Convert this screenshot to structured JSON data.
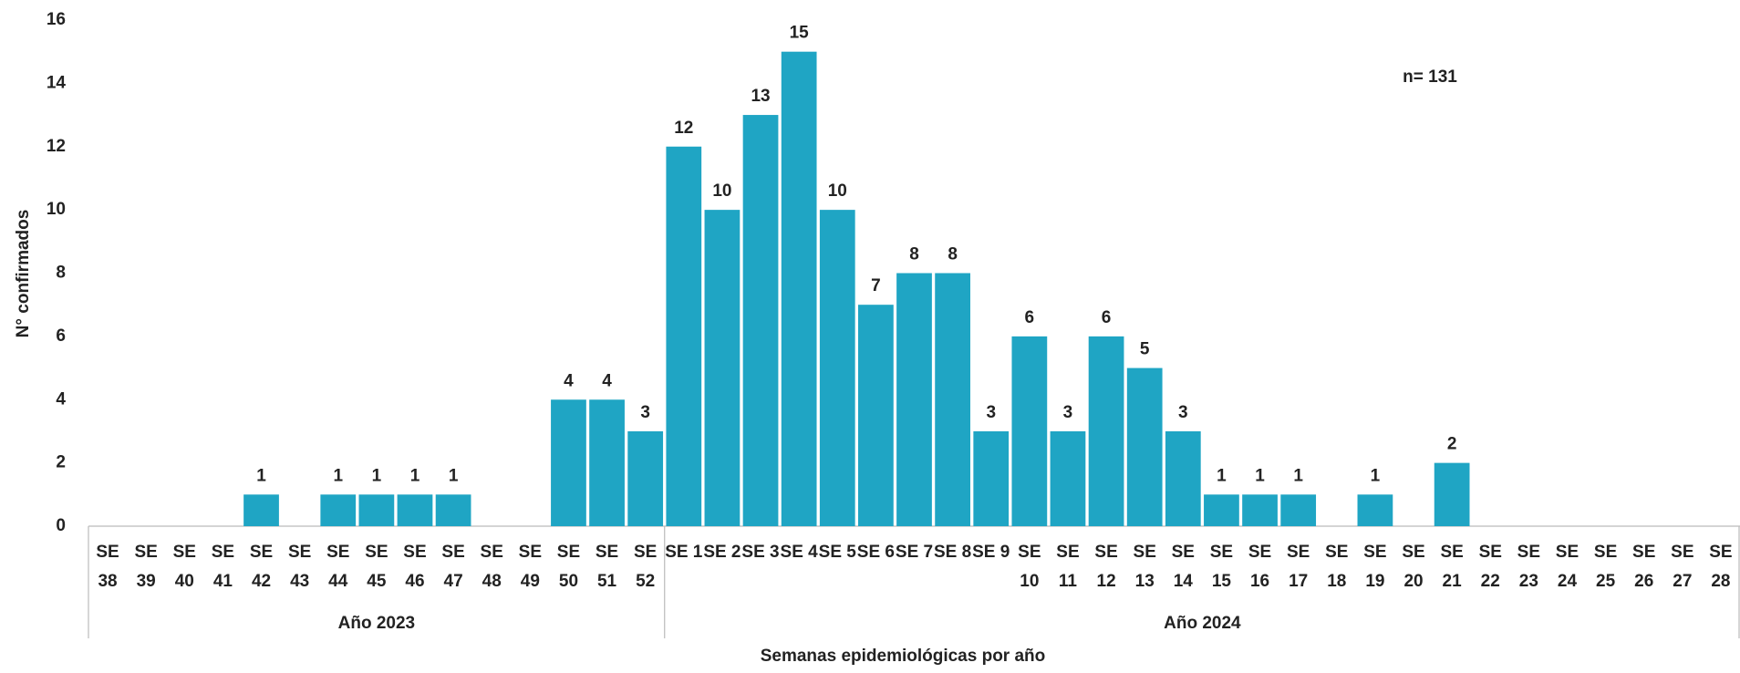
{
  "chart_data": {
    "type": "bar",
    "annotation": "n= 131",
    "x_label": "Semanas epidemiológicas por año",
    "y_label": "N° confirmados",
    "color": "#1fa5c4",
    "ylim": [
      0,
      16
    ],
    "yticks": [
      0,
      2,
      4,
      6,
      8,
      10,
      12,
      14,
      16
    ],
    "grid": false,
    "groups": [
      {
        "label": "Año 2023",
        "categories": [
          "SE 38",
          "SE 39",
          "SE 40",
          "SE 41",
          "SE 42",
          "SE 43",
          "SE 44",
          "SE 45",
          "SE 46",
          "SE 47",
          "SE 48",
          "SE 49",
          "SE 50",
          "SE 51",
          "SE 52"
        ],
        "values": [
          0,
          0,
          0,
          0,
          1,
          0,
          1,
          1,
          1,
          1,
          0,
          0,
          4,
          4,
          3
        ]
      },
      {
        "label": "Año 2024",
        "categories": [
          "SE 1",
          "SE 2",
          "SE 3",
          "SE 4",
          "SE 5",
          "SE 6",
          "SE 7",
          "SE 8",
          "SE 9",
          "SE 10",
          "SE 11",
          "SE 12",
          "SE 13",
          "SE 14",
          "SE 15",
          "SE 16",
          "SE 17",
          "SE 18",
          "SE 19",
          "SE 20",
          "SE 21",
          "SE 22",
          "SE 23",
          "SE 24",
          "SE 25",
          "SE 26",
          "SE 27",
          "SE 28"
        ],
        "values": [
          12,
          10,
          13,
          15,
          10,
          7,
          8,
          8,
          3,
          6,
          3,
          6,
          5,
          3,
          1,
          1,
          1,
          0,
          1,
          0,
          2,
          0,
          0,
          0,
          0,
          0,
          0,
          0
        ]
      }
    ]
  }
}
